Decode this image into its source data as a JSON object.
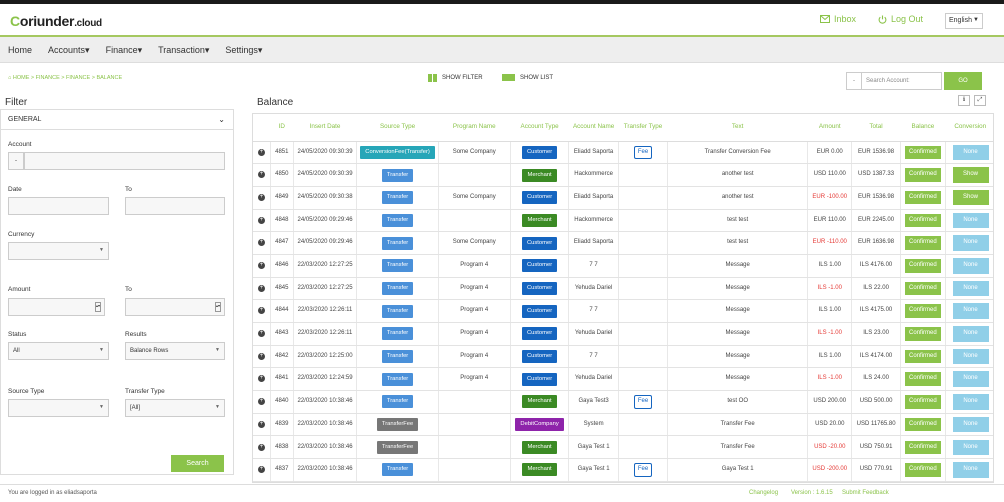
{
  "header": {
    "logo_main": "oriunder",
    "logo_c": "C",
    "logo_suffix": ".cloud",
    "inbox_label": "Inbox",
    "logout_label": "Log Out",
    "language": "English"
  },
  "nav": {
    "items": [
      "Home",
      "Accounts",
      "Finance",
      "Transaction",
      "Settings"
    ]
  },
  "breadcrumb": "HOME  >  FINANCE  >  FINANCE  >  BALANCE",
  "toolbar": {
    "show_filter": "SHOW FILTER",
    "show_list": "SHOW LIST",
    "search_placeholder": "Search Account:",
    "go": "GO"
  },
  "filter": {
    "title": "Filter",
    "group": "GENERAL",
    "account_label": "Account",
    "account_prefix": "-",
    "date_label": "Date",
    "to_label": "To",
    "currency_label": "Currency",
    "amount_label": "Amount",
    "status_label": "Status",
    "status_value": "All",
    "results_label": "Results",
    "results_value": "Balance Rows",
    "source_type_label": "Source Type",
    "transfer_type_label": "Transfer Type",
    "transfer_type_value": "[All]",
    "search_button": "Search"
  },
  "balance": {
    "title": "Balance",
    "columns": [
      "ID",
      "Insert Date",
      "Source Type",
      "Program Name",
      "Account Type",
      "Account Name",
      "Transfer Type",
      "Text",
      "Amount",
      "Total",
      "Balance",
      "Conversion"
    ],
    "rows": [
      {
        "id": "4851",
        "date": "24/05/2020 09:30:39",
        "source": "ConversionFee(Transfer)",
        "program": "Some Company",
        "acct_type": "Customer",
        "acct_name": "Eliadd Saporta",
        "transfer_type": "Fee",
        "text": "Transfer Conversion Fee",
        "amount": "EUR 0.00",
        "amount_neg": false,
        "total": "EUR 1536.98",
        "balance": "Confirmed",
        "conversion": "None"
      },
      {
        "id": "4850",
        "date": "24/05/2020 09:30:39",
        "source": "Transfer",
        "program": "",
        "acct_type": "Merchant",
        "acct_name": "Hackommerce",
        "transfer_type": "",
        "text": "another test",
        "amount": "USD 110.00",
        "amount_neg": false,
        "total": "USD 1387.33",
        "balance": "Confirmed",
        "conversion": "Show"
      },
      {
        "id": "4849",
        "date": "24/05/2020 09:30:38",
        "source": "Transfer",
        "program": "Some Company",
        "acct_type": "Customer",
        "acct_name": "Eliadd Saporta",
        "transfer_type": "",
        "text": "another test",
        "amount": "EUR -100.00",
        "amount_neg": true,
        "total": "EUR 1536.98",
        "balance": "Confirmed",
        "conversion": "Show"
      },
      {
        "id": "4848",
        "date": "24/05/2020 09:29:46",
        "source": "Transfer",
        "program": "",
        "acct_type": "Merchant",
        "acct_name": "Hackommerce",
        "transfer_type": "",
        "text": "test test",
        "amount": "EUR 110.00",
        "amount_neg": false,
        "total": "EUR 2245.00",
        "balance": "Confirmed",
        "conversion": "None"
      },
      {
        "id": "4847",
        "date": "24/05/2020 09:29:46",
        "source": "Transfer",
        "program": "Some Company",
        "acct_type": "Customer",
        "acct_name": "Eliadd Saporta",
        "transfer_type": "",
        "text": "test test",
        "amount": "EUR -110.00",
        "amount_neg": true,
        "total": "EUR 1636.98",
        "balance": "Confirmed",
        "conversion": "None"
      },
      {
        "id": "4846",
        "date": "22/03/2020 12:27:25",
        "source": "Transfer",
        "program": "Program 4",
        "acct_type": "Customer",
        "acct_name": "7 7",
        "transfer_type": "",
        "text": "Message",
        "amount": "ILS 1.00",
        "amount_neg": false,
        "total": "ILS 4176.00",
        "balance": "Confirmed",
        "conversion": "None"
      },
      {
        "id": "4845",
        "date": "22/03/2020 12:27:25",
        "source": "Transfer",
        "program": "Program 4",
        "acct_type": "Customer",
        "acct_name": "Yehuda Dariel",
        "transfer_type": "",
        "text": "Message",
        "amount": "ILS -1.00",
        "amount_neg": true,
        "total": "ILS 22.00",
        "balance": "Confirmed",
        "conversion": "None"
      },
      {
        "id": "4844",
        "date": "22/03/2020 12:26:11",
        "source": "Transfer",
        "program": "Program 4",
        "acct_type": "Customer",
        "acct_name": "7 7",
        "transfer_type": "",
        "text": "Message",
        "amount": "ILS 1.00",
        "amount_neg": false,
        "total": "ILS 4175.00",
        "balance": "Confirmed",
        "conversion": "None"
      },
      {
        "id": "4843",
        "date": "22/03/2020 12:26:11",
        "source": "Transfer",
        "program": "Program 4",
        "acct_type": "Customer",
        "acct_name": "Yehuda Dariel",
        "transfer_type": "",
        "text": "Message",
        "amount": "ILS -1.00",
        "amount_neg": true,
        "total": "ILS 23.00",
        "balance": "Confirmed",
        "conversion": "None"
      },
      {
        "id": "4842",
        "date": "22/03/2020 12:25:00",
        "source": "Transfer",
        "program": "Program 4",
        "acct_type": "Customer",
        "acct_name": "7 7",
        "transfer_type": "",
        "text": "Message",
        "amount": "ILS 1.00",
        "amount_neg": false,
        "total": "ILS 4174.00",
        "balance": "Confirmed",
        "conversion": "None"
      },
      {
        "id": "4841",
        "date": "22/03/2020 12:24:59",
        "source": "Transfer",
        "program": "Program 4",
        "acct_type": "Customer",
        "acct_name": "Yehuda Dariel",
        "transfer_type": "",
        "text": "Message",
        "amount": "ILS -1.00",
        "amount_neg": true,
        "total": "ILS 24.00",
        "balance": "Confirmed",
        "conversion": "None"
      },
      {
        "id": "4840",
        "date": "22/03/2020 10:38:46",
        "source": "Transfer",
        "program": "",
        "acct_type": "Merchant",
        "acct_name": "Gaya Test3",
        "transfer_type": "Fee",
        "text": "test OO",
        "amount": "USD 200.00",
        "amount_neg": false,
        "total": "USD 500.00",
        "balance": "Confirmed",
        "conversion": "None"
      },
      {
        "id": "4839",
        "date": "22/03/2020 10:38:46",
        "source": "TransferFee",
        "program": "",
        "acct_type": "DebitCompany",
        "acct_name": "System",
        "transfer_type": "",
        "text": "Transfer Fee",
        "amount": "USD 20.00",
        "amount_neg": false,
        "total": "USD 11765.80",
        "balance": "Confirmed",
        "conversion": "None"
      },
      {
        "id": "4838",
        "date": "22/03/2020 10:38:46",
        "source": "TransferFee",
        "program": "",
        "acct_type": "Merchant",
        "acct_name": "Gaya Test 1",
        "transfer_type": "",
        "text": "Transfer Fee",
        "amount": "USD -20.00",
        "amount_neg": true,
        "total": "USD 750.91",
        "balance": "Confirmed",
        "conversion": "None"
      },
      {
        "id": "4837",
        "date": "22/03/2020 10:38:46",
        "source": "Transfer",
        "program": "",
        "acct_type": "Merchant",
        "acct_name": "Gaya Test 1",
        "transfer_type": "Fee",
        "text": "Gaya Test 1",
        "amount": "USD -200.00",
        "amount_neg": true,
        "total": "USD 770.91",
        "balance": "Confirmed",
        "conversion": "None"
      }
    ]
  },
  "footer": {
    "logged_in": "You are logged in as eliadsaporta",
    "changelog": "Changelog",
    "version": "Version : 1.6.15",
    "feedback": "Submit Feedback"
  },
  "colors": {
    "accent": "#8bc34a",
    "customer": "#1565c0",
    "merchant": "#3b8a24",
    "debit": "#8e24aa",
    "negative": "#e53935"
  }
}
